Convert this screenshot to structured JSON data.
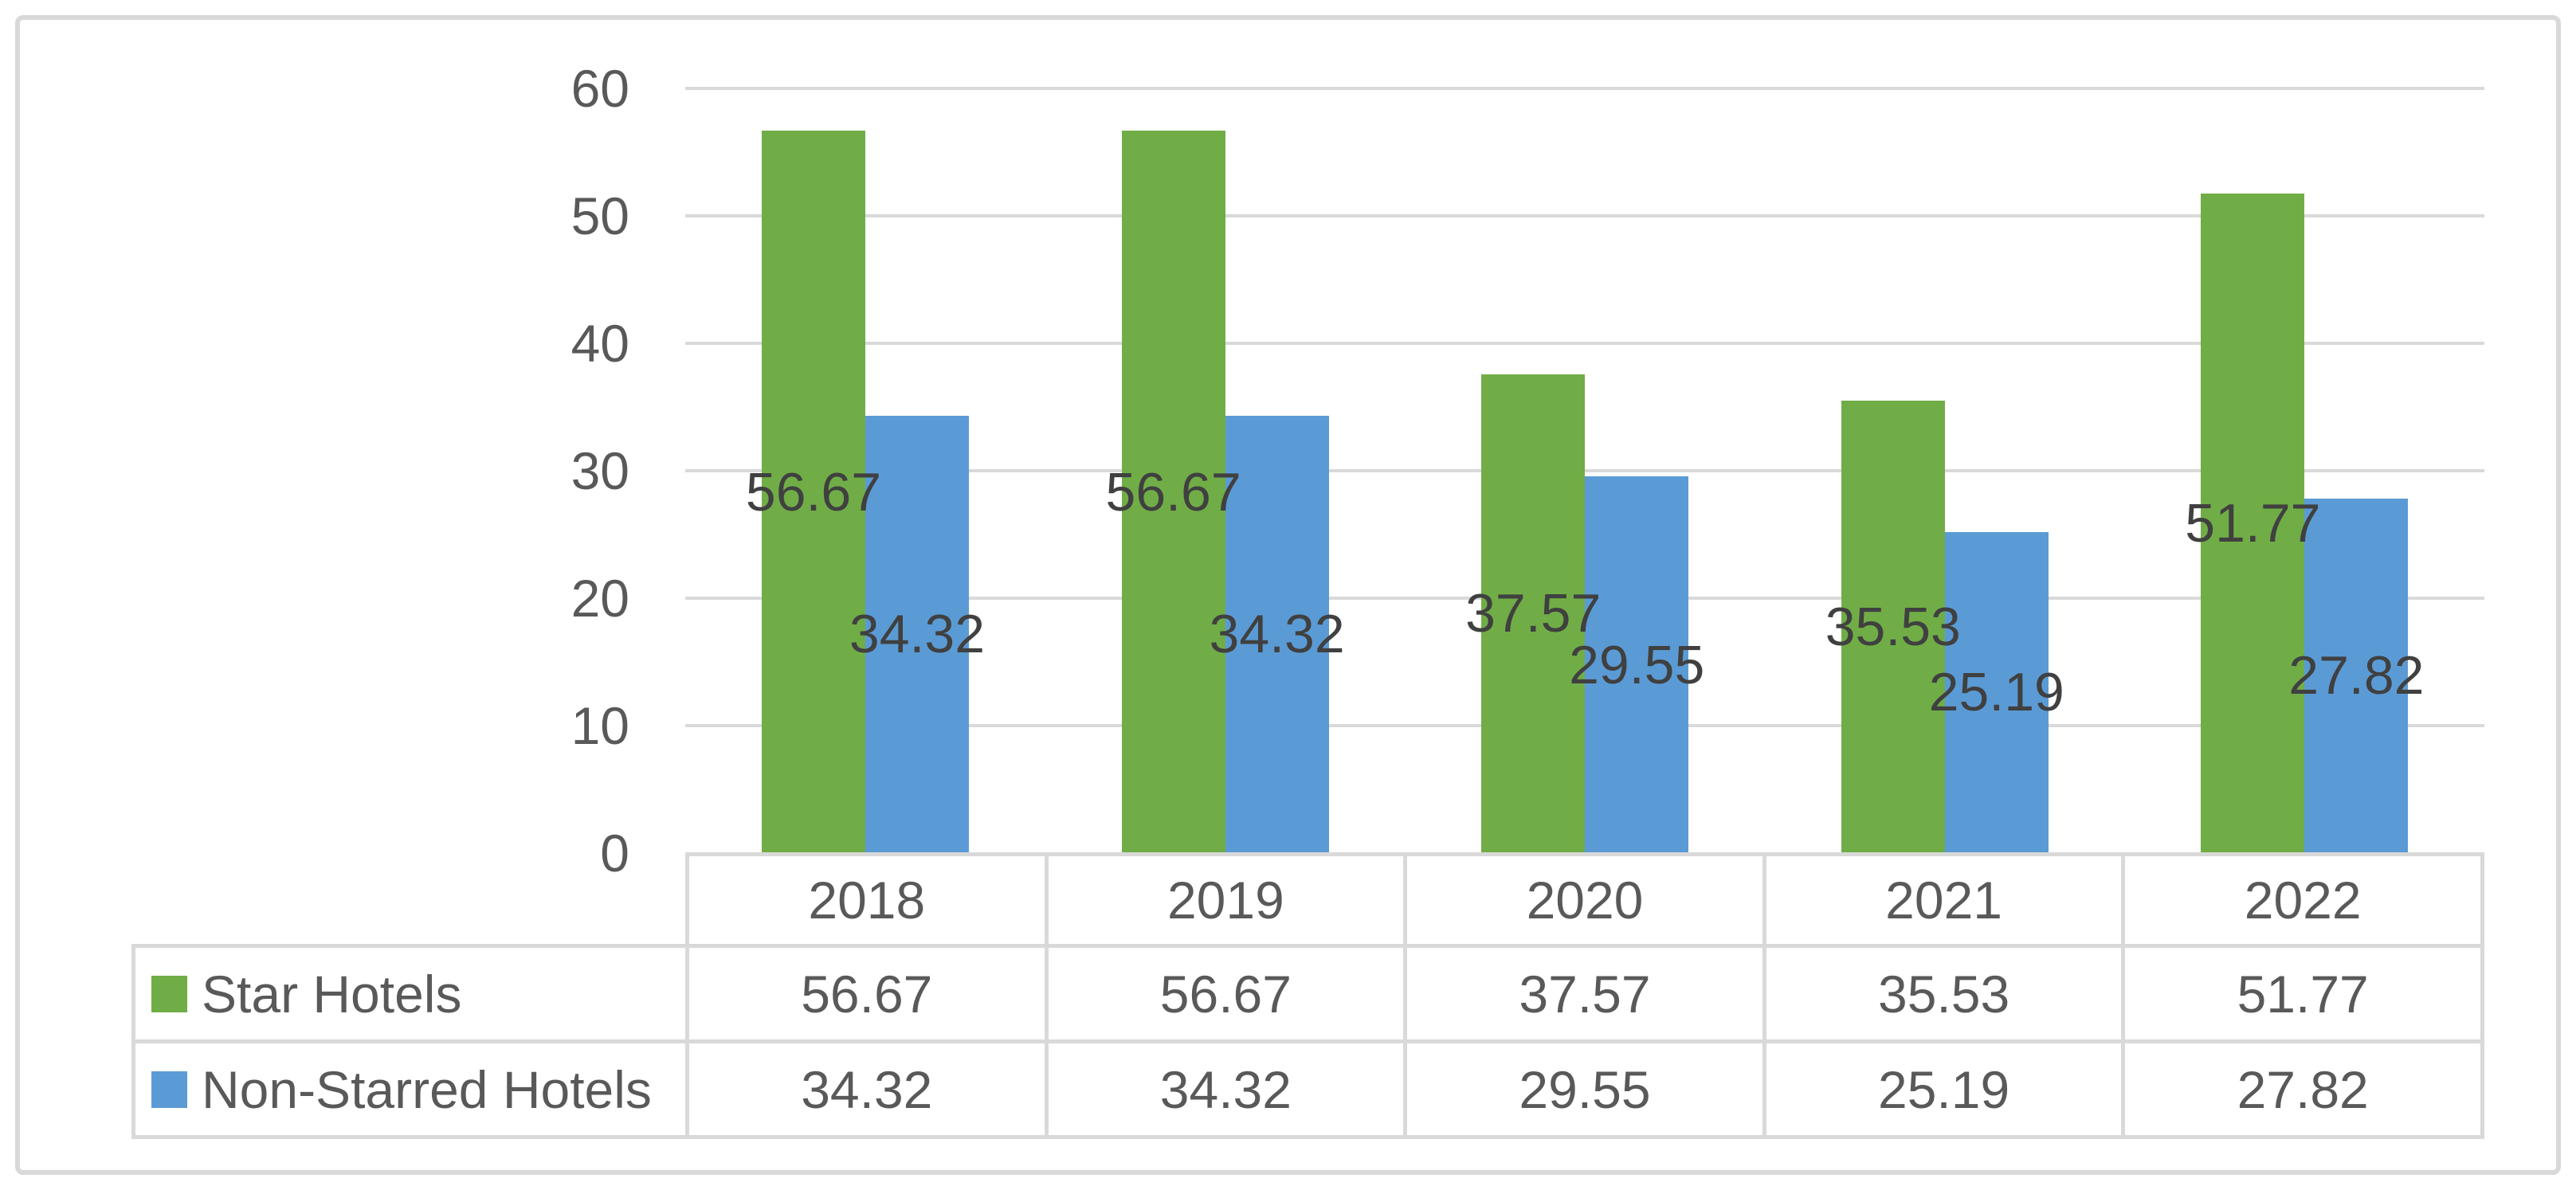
{
  "chart_data": {
    "type": "bar",
    "title": "",
    "xlabel": "",
    "ylabel": "",
    "categories": [
      "2018",
      "2019",
      "2020",
      "2021",
      "2022"
    ],
    "series": [
      {
        "name": "Star Hotels",
        "color": "#70AD47",
        "values": [
          56.67,
          56.67,
          37.57,
          35.53,
          51.77
        ]
      },
      {
        "name": "Non-Starred Hotels",
        "color": "#5B9BD5",
        "values": [
          34.32,
          34.32,
          29.55,
          25.19,
          27.82
        ]
      }
    ],
    "ylim": [
      0,
      60
    ],
    "yticks": [
      0,
      10,
      20,
      30,
      40,
      50,
      60
    ],
    "grid": true,
    "data_label_position": "center",
    "legend_position": "data-table-row-headers",
    "colors": {
      "gridline": "#D9D9D9",
      "table_border": "#D9D9D9",
      "frame_border": "#D9D9D9",
      "axis_text": "#595959",
      "table_text": "#595959",
      "data_label_text": "#404040",
      "background": "#FFFFFF"
    }
  },
  "data_table": {
    "column_headers": [
      "2018",
      "2019",
      "2020",
      "2021",
      "2022"
    ],
    "rows": [
      {
        "label": "Star Hotels",
        "swatch_color": "#70AD47",
        "values": [
          "56.67",
          "56.67",
          "37.57",
          "35.53",
          "51.77"
        ]
      },
      {
        "label": "Non-Starred Hotels",
        "swatch_color": "#5B9BD5",
        "values": [
          "34.32",
          "34.32",
          "29.55",
          "25.19",
          "27.82"
        ]
      }
    ]
  }
}
